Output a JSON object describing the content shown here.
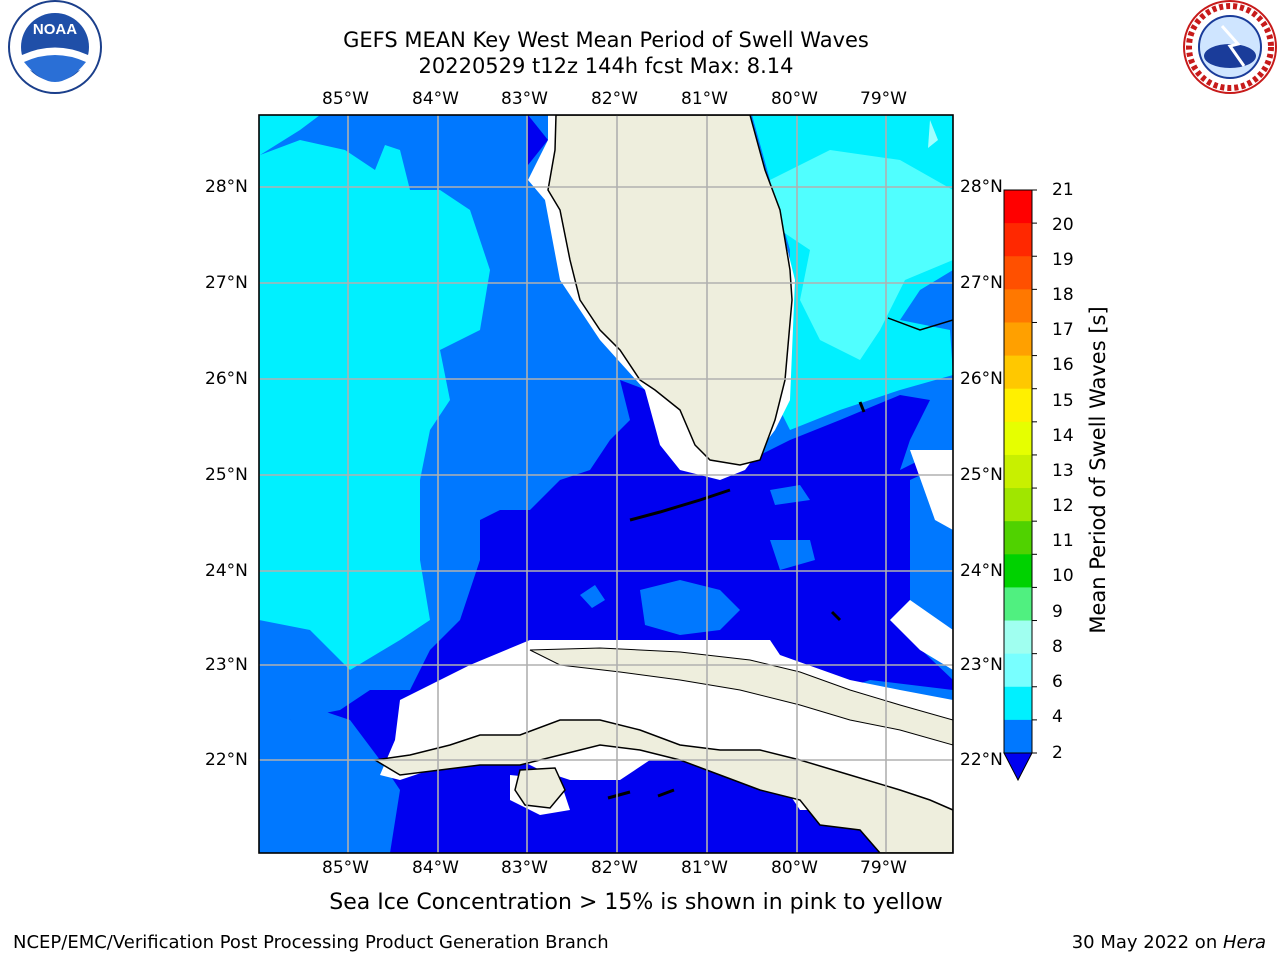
{
  "title_line1": "GEFS MEAN Key West Mean Period of Swell Waves",
  "title_line2": "20220529 t12z 144h fcst   Max: 8.14",
  "subtitle": "Sea Ice Concentration > 15% is shown in pink to yellow",
  "footer_left": "NCEP/EMC/Verification Post Processing Product Generation Branch",
  "footer_date": "30 May 2022 on ",
  "footer_host": "Hera",
  "longitudes": [
    "85°W",
    "84°W",
    "83°W",
    "82°W",
    "81°W",
    "80°W",
    "79°W"
  ],
  "latitudes": [
    "28°N",
    "27°N",
    "26°N",
    "25°N",
    "24°N",
    "23°N",
    "22°N"
  ],
  "colorbar": {
    "label": "Mean Period of Swell Waves [s]",
    "ticks": [
      "21",
      "20",
      "19",
      "18",
      "17",
      "16",
      "15",
      "14",
      "13",
      "12",
      "11",
      "10",
      "9",
      "8",
      "6",
      "4",
      "2"
    ],
    "colors": [
      "#ff0000",
      "#ff2800",
      "#ff5000",
      "#ff7800",
      "#ffa000",
      "#ffc800",
      "#fff000",
      "#e6ff00",
      "#c8f000",
      "#a0e600",
      "#50d200",
      "#00d200",
      "#50f080",
      "#a0fff0",
      "#78ffff",
      "#00f0ff",
      "#0078ff",
      "#0000f0"
    ]
  },
  "legend_colors": {
    "period_2_4": "#0078ff",
    "period_4_6": "#00f0ff",
    "period_6_8": "#78ffff",
    "period_lt_2": "#0000f0",
    "land": "#eeeedd"
  },
  "logos": {
    "noaa": "NOAA",
    "nws": "NATIONAL WEATHER SERVICE"
  }
}
